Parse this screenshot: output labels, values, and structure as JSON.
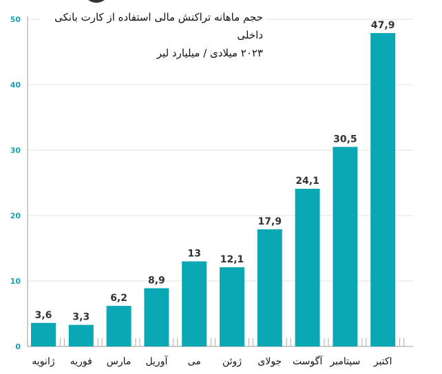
{
  "chart_data": {
    "type": "bar",
    "title": "حجم ماهانه تراکنش مالی استفاده از کارت بانکی داخلی",
    "subtitle": "۲۰۲۳ میلادی / میلیارد لیر",
    "categories": [
      "ژانویه",
      "فوریه",
      "مارس",
      "آوریل",
      "می",
      "ژوئن",
      "جولای",
      "آگوست",
      "سپتامبر",
      "اکتبر"
    ],
    "values": [
      3.6,
      3.3,
      6.2,
      8.9,
      13,
      12.1,
      17.9,
      24.1,
      30.5,
      47.9
    ],
    "value_labels": [
      "3,6",
      "3,3",
      "6,2",
      "8,9",
      "13",
      "12,1",
      "17,9",
      "24,1",
      "30,5",
      "47,9"
    ],
    "yticks": [
      "0",
      "10",
      "20",
      "30",
      "40",
      "50"
    ],
    "ylim": [
      0,
      50
    ],
    "grid": true,
    "xlabel": "",
    "ylabel": "",
    "colors": {
      "bar": "#0aa8b5",
      "tick": "#1aa3ae",
      "grid": "#e2e2e2"
    }
  }
}
